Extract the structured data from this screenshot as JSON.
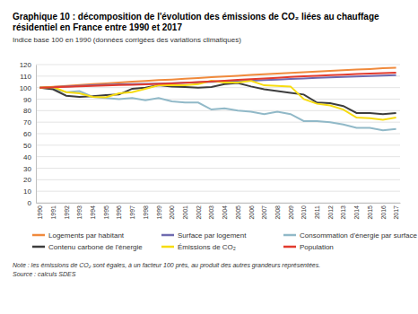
{
  "chart_data": {
    "type": "line",
    "title": "Graphique 10 : décomposition de l'évolution des émissions de CO₂ liées au chauffage résidentiel en France entre 1990 et 2017",
    "subtitle": "Indice base 100 en 1990 (données corrigées des variations climatiques)",
    "note": "Note : les émissions de CO₂ sont égales, à un facteur 100 près, au produit des autres grandeurs représentées.",
    "source": "Source : calculs SDES",
    "categories": [
      "1990",
      "1991",
      "1992",
      "1993",
      "1994",
      "1995",
      "1996",
      "1997",
      "1998",
      "1999",
      "2000",
      "2001",
      "2002",
      "2003",
      "2004",
      "2005",
      "2006",
      "2007",
      "2008",
      "2009",
      "2010",
      "2011",
      "2012",
      "2013",
      "2014",
      "2015",
      "2016",
      "2017"
    ],
    "ylim": [
      0,
      120
    ],
    "yticks": [
      0,
      10,
      20,
      30,
      40,
      50,
      60,
      70,
      80,
      90,
      100,
      110,
      120
    ],
    "grid": true,
    "legend": "bottom",
    "series": [
      {
        "name": "Logements par habitant",
        "color": "#f08a3c",
        "values": [
          100,
          100.8,
          101.5,
          102.2,
          103,
          103.7,
          104.4,
          105.1,
          105.8,
          106.5,
          107,
          107.7,
          108.4,
          109.1,
          109.7,
          110.3,
          111,
          111.6,
          112.2,
          112.8,
          113.4,
          114,
          114.6,
          115.1,
          115.7,
          116.2,
          116.8,
          117.2
        ]
      },
      {
        "name": "Surface par logement",
        "color": "#6f6bb0",
        "values": [
          100,
          100.5,
          101,
          101.5,
          102,
          102.5,
          102.8,
          103,
          103.2,
          103.5,
          103.8,
          104.2,
          104.6,
          105,
          105.3,
          105.6,
          106,
          106.5,
          107,
          107.5,
          108,
          108.5,
          108.8,
          109.2,
          109.6,
          110,
          110.4,
          110.8
        ]
      },
      {
        "name": "Consommation d'énergie par surface",
        "color": "#91b9c8",
        "values": [
          100,
          99,
          96,
          97,
          92,
          91,
          90,
          91,
          89,
          91,
          88,
          87,
          87,
          81,
          82,
          80,
          79,
          77,
          79,
          77,
          71,
          71,
          70,
          68,
          65,
          65,
          63,
          64
        ]
      },
      {
        "name": "Contenu carbone de l'énergie",
        "color": "#3d3d3d",
        "values": [
          100,
          98.5,
          93,
          92,
          92.5,
          93.5,
          94,
          99,
          100,
          102,
          101,
          100.5,
          100,
          100.5,
          103,
          104,
          101,
          98.5,
          97,
          95.5,
          94,
          87,
          86.5,
          84,
          78,
          78,
          77,
          78
        ]
      },
      {
        "name": "Émissions de CO₂",
        "color": "#f7dc11",
        "values": [
          100,
          100.5,
          96,
          95,
          92,
          91.5,
          95,
          96,
          99,
          102,
          102,
          102,
          103,
          106,
          104.5,
          104.5,
          106,
          102,
          101.5,
          101,
          90,
          86,
          84.5,
          81,
          74,
          73.5,
          72,
          74
        ]
      },
      {
        "name": "Population",
        "color": "#e23b2e",
        "values": [
          100,
          100.4,
          100.8,
          101.2,
          101.5,
          101.9,
          102.2,
          102.5,
          102.8,
          103.2,
          103.7,
          104.2,
          104.8,
          105.3,
          106,
          106.7,
          107.4,
          108,
          108.6,
          109.2,
          109.8,
          110.3,
          110.8,
          111.3,
          111.8,
          112.2,
          112.6,
          113
        ]
      }
    ]
  }
}
